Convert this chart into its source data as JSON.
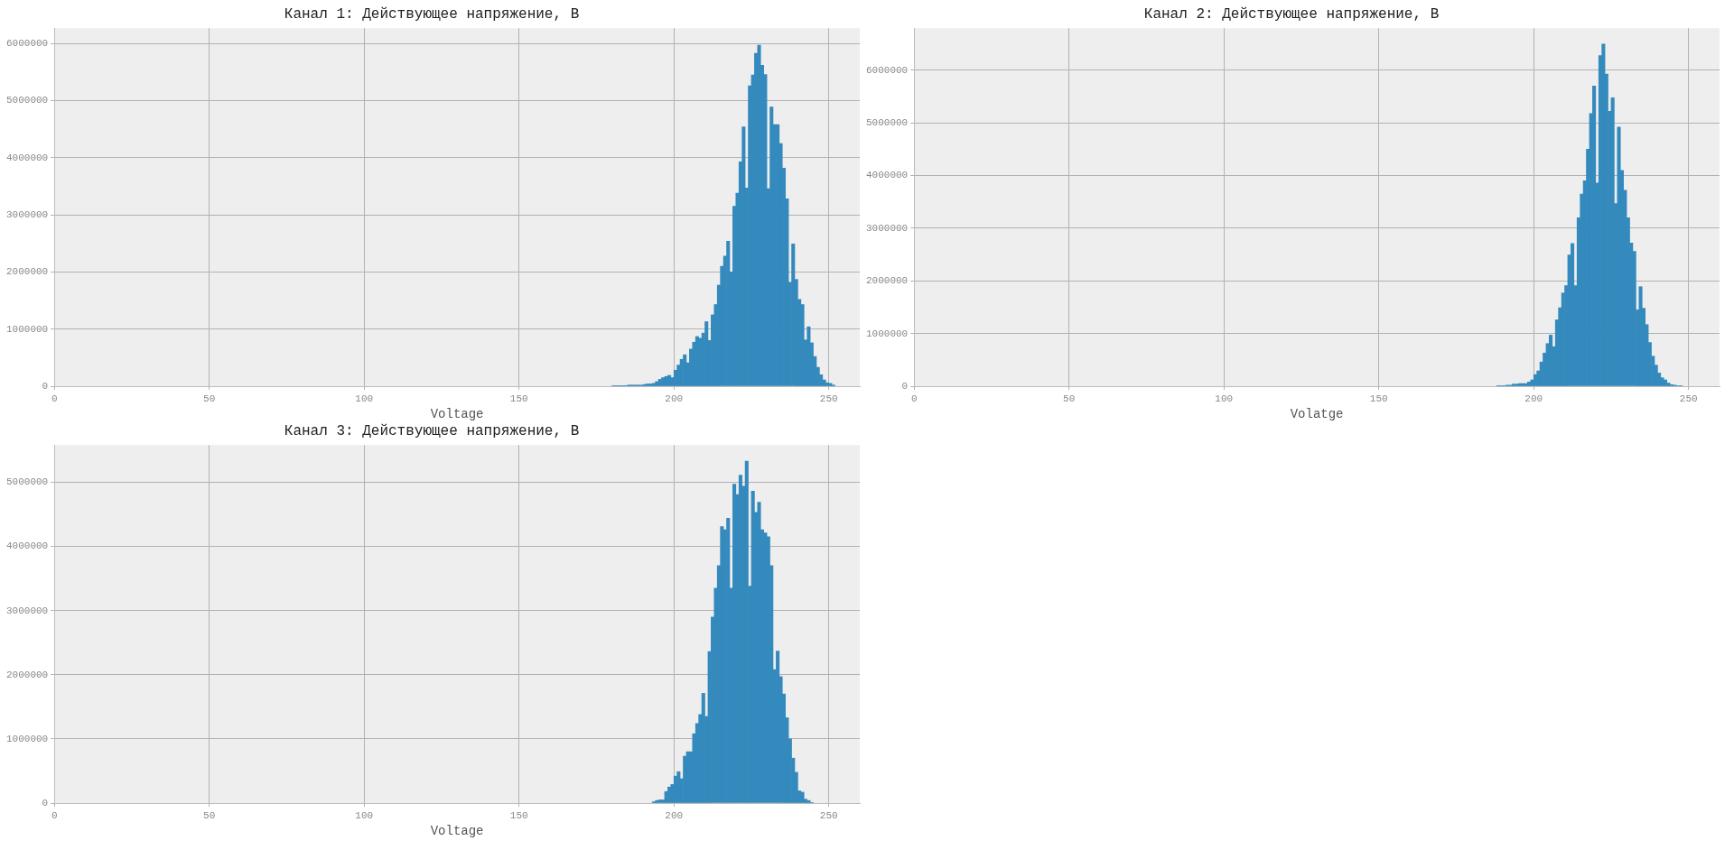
{
  "chart_data": [
    {
      "type": "histogram",
      "title": "Канал 1: Действующее напряжение, В",
      "xlabel": "Voltage",
      "color": "#348abd",
      "grid": true,
      "xlim": [
        0,
        260
      ],
      "xticks": [
        0,
        50,
        100,
        150,
        200,
        250
      ],
      "ylim": [
        0,
        6270000
      ],
      "yticks": [
        0,
        1000000,
        2000000,
        3000000,
        4000000,
        5000000,
        6000000
      ],
      "bins": [
        180,
        181,
        182,
        183,
        184,
        185,
        186,
        187,
        188,
        189,
        190,
        191,
        192,
        193,
        194,
        195,
        196,
        197,
        198,
        199,
        200,
        201,
        202,
        203,
        204,
        205,
        206,
        207,
        208,
        209,
        210,
        211,
        212,
        213,
        214,
        215,
        216,
        217,
        218,
        219,
        220,
        221,
        222,
        223,
        224,
        225,
        226,
        227,
        228,
        229,
        230,
        231,
        232,
        233,
        234,
        235,
        236,
        237,
        238,
        239,
        240,
        241,
        242,
        243,
        244,
        245,
        246,
        247,
        248,
        249,
        250,
        251,
        252
      ],
      "values": [
        10000,
        10000,
        10000,
        10000,
        10000,
        20000,
        20000,
        20000,
        20000,
        20000,
        30000,
        40000,
        40000,
        50000,
        80000,
        120000,
        150000,
        170000,
        190000,
        150000,
        280000,
        370000,
        470000,
        550000,
        410000,
        650000,
        770000,
        870000,
        840000,
        930000,
        1130000,
        800000,
        1250000,
        1430000,
        1770000,
        2100000,
        2280000,
        2540000,
        2000000,
        3150000,
        3380000,
        3930000,
        4540000,
        3470000,
        5260000,
        5450000,
        5830000,
        5970000,
        5620000,
        5460000,
        3460000,
        4890000,
        4580000,
        4580000,
        4250000,
        3820000,
        3280000,
        1820000,
        2490000,
        1870000,
        1520000,
        1430000,
        810000,
        1040000,
        760000,
        520000,
        330000,
        200000,
        110000,
        60000,
        50000,
        20000
      ]
    },
    {
      "type": "histogram",
      "title": "Канал 2: Действующее напряжение, В",
      "xlabel": "Volatge",
      "color": "#348abd",
      "grid": true,
      "xlim": [
        0,
        260
      ],
      "xticks": [
        0,
        50,
        100,
        150,
        200,
        250
      ],
      "ylim": [
        0,
        6800000
      ],
      "yticks": [
        0,
        1000000,
        2000000,
        3000000,
        4000000,
        5000000,
        6000000
      ],
      "bins": [
        188,
        189,
        190,
        191,
        192,
        193,
        194,
        195,
        196,
        197,
        198,
        199,
        200,
        201,
        202,
        203,
        204,
        205,
        206,
        207,
        208,
        209,
        210,
        211,
        212,
        213,
        214,
        215,
        216,
        217,
        218,
        219,
        220,
        221,
        222,
        223,
        224,
        225,
        226,
        227,
        228,
        229,
        230,
        231,
        232,
        233,
        234,
        235,
        236,
        237,
        238,
        239,
        240,
        241,
        242,
        243,
        244,
        245,
        246,
        247,
        248
      ],
      "values": [
        10000,
        10000,
        10000,
        20000,
        20000,
        40000,
        40000,
        50000,
        50000,
        50000,
        80000,
        120000,
        220000,
        290000,
        460000,
        630000,
        810000,
        970000,
        750000,
        1260000,
        1490000,
        1770000,
        1910000,
        2490000,
        2710000,
        1910000,
        3200000,
        3650000,
        3900000,
        4500000,
        5180000,
        5700000,
        3860000,
        6280000,
        6500000,
        5930000,
        5220000,
        5480000,
        3470000,
        4920000,
        4100000,
        3720000,
        3200000,
        2720000,
        2560000,
        1450000,
        1890000,
        1480000,
        1170000,
        830000,
        570000,
        400000,
        250000,
        160000,
        120000,
        60000,
        30000,
        20000,
        10000,
        10000
      ]
    },
    {
      "type": "histogram",
      "title": "Канал 3: Действующее напряжение, В",
      "xlabel": "Voltage",
      "color": "#348abd",
      "grid": true,
      "xlim": [
        0,
        260
      ],
      "xticks": [
        0,
        50,
        100,
        150,
        200,
        250
      ],
      "ylim": [
        0,
        5580000
      ],
      "yticks": [
        0,
        1000000,
        2000000,
        3000000,
        4000000,
        5000000
      ],
      "bins": [
        193,
        194,
        195,
        196,
        197,
        198,
        199,
        200,
        201,
        202,
        203,
        204,
        205,
        206,
        207,
        208,
        209,
        210,
        211,
        212,
        213,
        214,
        215,
        216,
        217,
        218,
        219,
        220,
        221,
        222,
        223,
        224,
        225,
        226,
        227,
        228,
        229,
        230,
        231,
        232,
        233,
        234,
        235,
        236,
        237,
        238,
        239,
        240,
        241,
        242,
        243,
        244,
        245
      ],
      "values": [
        20000,
        40000,
        50000,
        50000,
        180000,
        250000,
        290000,
        420000,
        490000,
        380000,
        730000,
        800000,
        800000,
        1080000,
        1240000,
        1380000,
        1710000,
        1350000,
        2360000,
        2900000,
        3350000,
        3700000,
        4310000,
        4260000,
        4440000,
        3350000,
        4970000,
        4810000,
        5110000,
        4940000,
        5330000,
        3380000,
        4860000,
        4530000,
        4690000,
        4260000,
        4210000,
        4150000,
        3700000,
        2080000,
        2370000,
        1970000,
        1700000,
        1330000,
        1000000,
        700000,
        480000,
        190000,
        170000,
        60000,
        40000,
        10000
      ]
    }
  ]
}
